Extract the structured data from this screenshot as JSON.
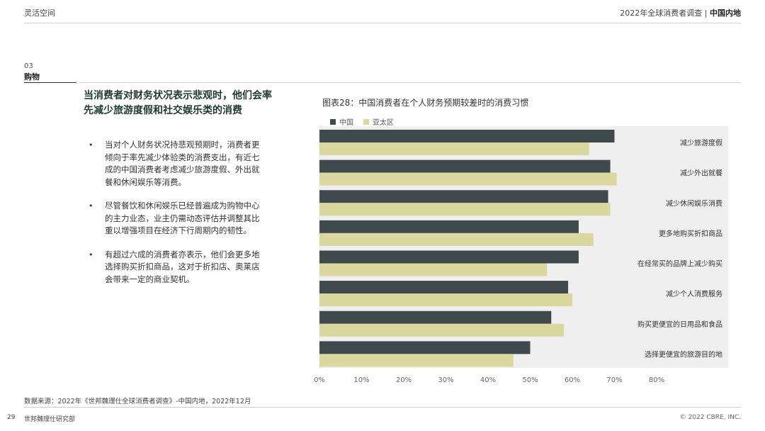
{
  "header": {
    "left": "灵活空间",
    "right_plain": "2022年全球消费者调查 | ",
    "right_bold": "中国内地"
  },
  "section": {
    "number": "03",
    "title": "购物"
  },
  "headline": "当消费者对财务状况表示悲观时，他们会率先减少旅游度假和社交娱乐类的消费",
  "bullets": [
    "当对个人财务状况持悲观预期时，消费者更倾向于率先减少体验类的消费支出，有近七成的中国消费者考虑减少旅游度假、外出就餐和休闲娱乐等消费。",
    "尽管餐饮和休闲娱乐已经普遍成为购物中心的主力业态，业主仍需动态评估并调整其比重以增强项目在经济下行周期内的韧性。",
    "有超过六成的消费者亦表示，他们会更多地选择购买折扣商品，这对于折扣店、奥莱店会带来一定的商业契机。"
  ],
  "bullet_marker": "•",
  "chart_data": {
    "type": "bar",
    "orientation": "horizontal",
    "title": "图表28：中国消费者在个人财务预期较差时的消费习惯",
    "categories": [
      "减少旅游度假",
      "减少外出就餐",
      "减少休闲娱乐消费",
      "更多地购买折扣商品",
      "在经常买的品牌上减少购买",
      "减少个人消费服务",
      "购买更便宜的日用品和食品",
      "选择更便宜的旅游目的地"
    ],
    "series": [
      {
        "name": "中国",
        "color": "#3f4a4c",
        "values": [
          70,
          69,
          68.5,
          61.5,
          61.5,
          59,
          55,
          50
        ]
      },
      {
        "name": "亚太区",
        "color": "#dad79f",
        "values": [
          64,
          70.5,
          69,
          65,
          54,
          60,
          58,
          46
        ]
      }
    ],
    "xlim": [
      0,
      80
    ],
    "xticks": [
      "0%",
      "10%",
      "20%",
      "30%",
      "40%",
      "50%",
      "60%",
      "70%",
      "80%"
    ],
    "category_label_position": "right",
    "legend": "top-left",
    "background": "#efefef",
    "grid": false
  },
  "source": "数据来源：2022年《世邦魏理仕全球消费者调查》-中国内地，2022年12月",
  "footer": {
    "page": "29",
    "org": "世邦魏理仕研究部",
    "copyright": "© 2022 CBRE, INC."
  }
}
